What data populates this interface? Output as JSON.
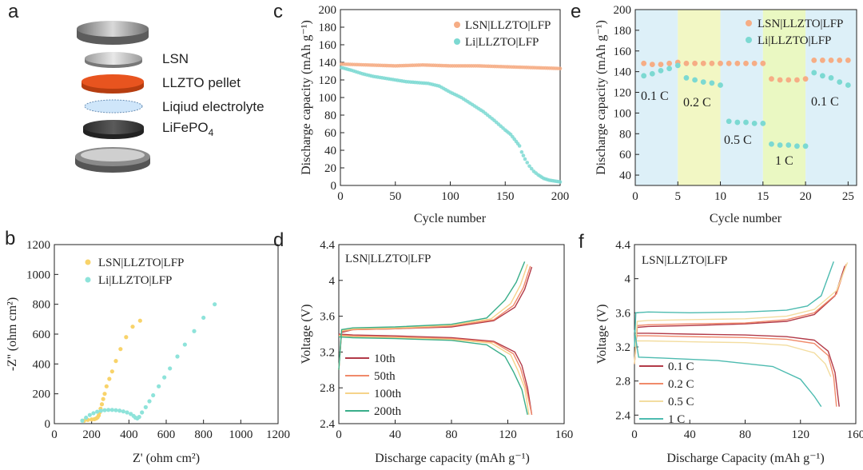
{
  "panels": {
    "a": "a",
    "b": "b",
    "c": "c",
    "d": "d",
    "e": "e",
    "f": "f"
  },
  "colors": {
    "lsn": "#F6AD85",
    "li": "#7CD9D2",
    "b_lsn": "#F8D36A",
    "b_li": "#8EE3DA",
    "d": [
      "#B23A48",
      "#F08A6A",
      "#F6D38A",
      "#3AAE8A"
    ],
    "f": [
      "#B23A48",
      "#F08A6A",
      "#F3DDA0",
      "#4DBBB0"
    ]
  },
  "schematic": {
    "layers": [
      "LSN",
      "LLZTO pellet",
      "Liqiud electrolyte",
      "LiFePO",
      "4"
    ]
  },
  "chart_data": [
    {
      "id": "b",
      "type": "scatter",
      "xlabel": "Z' (ohm cm²)",
      "ylabel": "-Z'' (ohm cm²)",
      "xlim": [
        0,
        1200
      ],
      "ylim": [
        0,
        1200
      ],
      "xticks": [
        0,
        200,
        400,
        600,
        800,
        1000,
        1200
      ],
      "yticks": [
        0,
        200,
        400,
        600,
        800,
        1000,
        1200
      ],
      "series": [
        {
          "name": "LSN|LLZTO|LFP",
          "x": [
            160,
            180,
            200,
            215,
            225,
            232,
            238,
            243,
            248,
            255,
            262,
            270,
            280,
            295,
            310,
            330,
            355,
            385,
            420,
            460
          ],
          "y": [
            20,
            25,
            28,
            30,
            35,
            42,
            55,
            75,
            100,
            130,
            165,
            200,
            250,
            300,
            350,
            420,
            500,
            580,
            650,
            690
          ]
        },
        {
          "name": "Li|LLZTO|LFP",
          "x": [
            150,
            170,
            190,
            210,
            230,
            250,
            270,
            290,
            310,
            330,
            350,
            370,
            390,
            410,
            425,
            435,
            445,
            455,
            470,
            490,
            510,
            530,
            560,
            590,
            620,
            660,
            700,
            750,
            800,
            860
          ],
          "y": [
            20,
            40,
            58,
            70,
            80,
            86,
            90,
            92,
            92,
            90,
            87,
            82,
            75,
            65,
            52,
            40,
            35,
            45,
            75,
            110,
            150,
            190,
            250,
            310,
            370,
            450,
            530,
            620,
            710,
            800
          ]
        }
      ]
    },
    {
      "id": "c",
      "type": "scatter",
      "xlabel": "Cycle number",
      "ylabel": "Discharge capacity (mAh g⁻¹)",
      "xlim": [
        0,
        200
      ],
      "ylim": [
        0,
        200
      ],
      "xticks": [
        0,
        50,
        100,
        150,
        200
      ],
      "yticks": [
        0,
        20,
        40,
        60,
        80,
        100,
        120,
        140,
        160,
        180,
        200
      ],
      "series": [
        {
          "name": "LSN|LLZTO|LFP",
          "x": [
            1,
            25,
            50,
            75,
            100,
            125,
            150,
            175,
            200
          ],
          "y": [
            138,
            137,
            136,
            137,
            136,
            136,
            135,
            134,
            133
          ]
        },
        {
          "name": "Li|LLZTO|LFP",
          "x": [
            1,
            10,
            20,
            30,
            40,
            50,
            60,
            70,
            80,
            90,
            100,
            110,
            120,
            130,
            140,
            150,
            155,
            160,
            163,
            165,
            168,
            172,
            176,
            180,
            185,
            190,
            195,
            200
          ],
          "y": [
            134,
            131,
            127,
            124,
            122,
            120,
            118,
            117,
            116,
            113,
            106,
            100,
            92,
            84,
            74,
            63,
            58,
            50,
            45,
            38,
            30,
            22,
            16,
            12,
            8,
            6,
            5,
            4
          ]
        }
      ]
    },
    {
      "id": "d",
      "type": "line",
      "title": "LSN|LLZTO|LFP",
      "xlabel": "Discharge capacity (mAh g⁻¹)",
      "ylabel": "Voltage (V)",
      "xlim": [
        0,
        160
      ],
      "ylim": [
        2.4,
        4.4
      ],
      "xticks": [
        0,
        40,
        80,
        120,
        160
      ],
      "yticks": [
        2.4,
        2.8,
        3.2,
        3.6,
        4.0,
        4.4
      ],
      "series": [
        {
          "name": "10th",
          "charge": {
            "x": [
              0,
              2,
              10,
              40,
              80,
              110,
              125,
              132,
              137
            ],
            "y": [
              3.0,
              3.42,
              3.45,
              3.46,
              3.48,
              3.55,
              3.7,
              3.9,
              4.15
            ]
          },
          "discharge": {
            "x": [
              0,
              10,
              40,
              80,
              110,
              125,
              130,
              134,
              137
            ],
            "y": [
              3.4,
              3.39,
              3.38,
              3.36,
              3.32,
              3.2,
              3.05,
              2.8,
              2.5
            ]
          }
        },
        {
          "name": "50th",
          "charge": {
            "x": [
              0,
              2,
              10,
              40,
              80,
              110,
              124,
              131,
              136
            ],
            "y": [
              3.0,
              3.43,
              3.45,
              3.46,
              3.49,
              3.56,
              3.72,
              3.92,
              4.16
            ]
          },
          "discharge": {
            "x": [
              0,
              10,
              40,
              80,
              110,
              124,
              129,
              133,
              137
            ],
            "y": [
              3.39,
              3.38,
              3.37,
              3.35,
              3.31,
              3.18,
              3.02,
              2.8,
              2.5
            ]
          }
        },
        {
          "name": "100th",
          "charge": {
            "x": [
              0,
              2,
              10,
              40,
              80,
              108,
              122,
              129,
              134
            ],
            "y": [
              3.0,
              3.44,
              3.46,
              3.47,
              3.5,
              3.57,
              3.74,
              3.95,
              4.18
            ]
          },
          "discharge": {
            "x": [
              0,
              10,
              40,
              80,
              108,
              122,
              127,
              132,
              135
            ],
            "y": [
              3.38,
              3.37,
              3.36,
              3.34,
              3.3,
              3.17,
              3.0,
              2.8,
              2.5
            ]
          }
        },
        {
          "name": "200th",
          "charge": {
            "x": [
              0,
              2,
              10,
              40,
              80,
              105,
              118,
              126,
              132
            ],
            "y": [
              3.0,
              3.45,
              3.47,
              3.48,
              3.51,
              3.58,
              3.78,
              3.98,
              4.21
            ]
          },
          "discharge": {
            "x": [
              0,
              10,
              40,
              80,
              105,
              118,
              124,
              130,
              134
            ],
            "y": [
              3.37,
              3.36,
              3.35,
              3.33,
              3.28,
              3.15,
              2.98,
              2.78,
              2.5
            ]
          }
        }
      ]
    },
    {
      "id": "e",
      "type": "scatter",
      "xlabel": "Cycle number",
      "ylabel": "Discharge capacity (mAh g⁻¹)",
      "xlim": [
        0,
        26
      ],
      "ylim": [
        30,
        200
      ],
      "xticks": [
        0,
        5,
        10,
        15,
        20,
        25
      ],
      "yticks": [
        40,
        60,
        80,
        100,
        120,
        140,
        160,
        180,
        200
      ],
      "regions": [
        {
          "from": 0,
          "to": 5,
          "color": "#DDF0F8",
          "label": "0.1 C"
        },
        {
          "from": 5,
          "to": 10,
          "color": "#F2F7C4",
          "label": "0.2 C"
        },
        {
          "from": 10,
          "to": 15,
          "color": "#DDF0F8",
          "label": "0.5 C"
        },
        {
          "from": 15,
          "to": 20,
          "color": "#EAF8C2",
          "label": "1 C"
        },
        {
          "from": 20,
          "to": 26,
          "color": "#DDF0F8",
          "label": "0.1 C"
        }
      ],
      "series": [
        {
          "name": "LSN|LLZTO|LFP",
          "x": [
            1,
            2,
            3,
            4,
            5,
            6,
            7,
            8,
            9,
            10,
            11,
            12,
            13,
            14,
            15,
            16,
            17,
            18,
            19,
            20,
            21,
            22,
            23,
            24,
            25
          ],
          "y": [
            148,
            147,
            147,
            148,
            149,
            148,
            148,
            148,
            148,
            148,
            148,
            148,
            148,
            148,
            148,
            133,
            132,
            132,
            132,
            133,
            151,
            151,
            151,
            151,
            151
          ]
        },
        {
          "name": "Li|LLZTO|LFP",
          "x": [
            1,
            2,
            3,
            4,
            5,
            6,
            7,
            8,
            9,
            10,
            11,
            12,
            13,
            14,
            15,
            16,
            17,
            18,
            19,
            20,
            21,
            22,
            23,
            24,
            25
          ],
          "y": [
            136,
            138,
            141,
            143,
            146,
            134,
            132,
            130,
            129,
            127,
            92,
            91,
            91,
            90,
            90,
            70,
            69,
            69,
            68,
            68,
            139,
            136,
            134,
            130,
            127
          ]
        }
      ]
    },
    {
      "id": "f",
      "type": "line",
      "title": "LSN|LLZTO|LFP",
      "xlabel": "Discharge Capacity (mAh g⁻¹)",
      "ylabel": "Voltage (V)",
      "xlim": [
        0,
        160
      ],
      "ylim": [
        2.3,
        4.4
      ],
      "xticks": [
        0,
        40,
        80,
        120,
        160
      ],
      "yticks": [
        2.4,
        2.8,
        3.2,
        3.6,
        4.0,
        4.4
      ],
      "series": [
        {
          "name": "0.1 C",
          "charge": {
            "x": [
              0,
              2,
              10,
              40,
              80,
              110,
              130,
              145,
              152
            ],
            "y": [
              3.0,
              3.43,
              3.44,
              3.45,
              3.47,
              3.5,
              3.58,
              3.8,
              4.15
            ]
          },
          "discharge": {
            "x": [
              0,
              10,
              40,
              80,
              110,
              130,
              140,
              145,
              148
            ],
            "y": [
              3.36,
              3.36,
              3.35,
              3.34,
              3.32,
              3.28,
              3.15,
              2.9,
              2.5
            ]
          }
        },
        {
          "name": "0.2 C",
          "charge": {
            "x": [
              0,
              2,
              10,
              40,
              80,
              110,
              130,
              146,
              153
            ],
            "y": [
              3.0,
              3.45,
              3.46,
              3.47,
              3.48,
              3.52,
              3.6,
              3.82,
              4.17
            ]
          },
          "discharge": {
            "x": [
              0,
              10,
              40,
              80,
              110,
              130,
              140,
              144,
              146
            ],
            "y": [
              3.33,
              3.33,
              3.32,
              3.31,
              3.29,
              3.24,
              3.1,
              2.85,
              2.5
            ]
          }
        },
        {
          "name": "0.5 C",
          "charge": {
            "x": [
              0,
              2,
              10,
              40,
              80,
              110,
              130,
              146,
              154
            ],
            "y": [
              3.0,
              3.5,
              3.51,
              3.52,
              3.53,
              3.56,
              3.64,
              3.86,
              4.19
            ]
          },
          "discharge": {
            "x": [
              0,
              10,
              40,
              80,
              110,
              130,
              138,
              142
            ],
            "y": [
              3.27,
              3.27,
              3.26,
              3.25,
              3.22,
              3.13,
              3.0,
              2.85
            ]
          }
        },
        {
          "name": "1 C",
          "charge": {
            "x": [
              0,
              1,
              10,
              40,
              80,
              110,
              125,
              135,
              144
            ],
            "y": [
              3.2,
              3.6,
              3.61,
              3.6,
              3.61,
              3.63,
              3.68,
              3.8,
              4.2
            ]
          },
          "discharge": {
            "x": [
              0,
              3,
              20,
              60,
              100,
              120,
              130,
              135
            ],
            "y": [
              3.4,
              3.08,
              3.07,
              3.04,
              2.97,
              2.82,
              2.62,
              2.5
            ]
          }
        }
      ]
    }
  ]
}
